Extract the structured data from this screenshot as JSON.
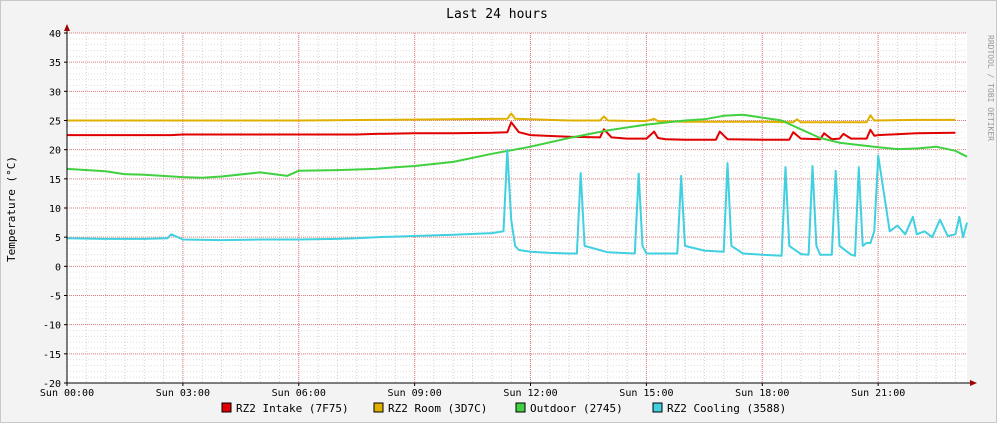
{
  "chart_data": {
    "type": "line",
    "title": "Last 24 hours",
    "ylabel": "Temperature (°C)",
    "xlabel": "",
    "watermark": "RRDTOOL / TOBI OETIKER",
    "ylim": [
      -20,
      40
    ],
    "yticks": [
      40,
      35,
      30,
      25,
      20,
      15,
      10,
      5,
      0,
      -5,
      -10,
      -15,
      -20
    ],
    "xlim": [
      0,
      23.3
    ],
    "xticks": [
      {
        "t": 0,
        "label": "Sun 00:00"
      },
      {
        "t": 3,
        "label": "Sun 03:00"
      },
      {
        "t": 6,
        "label": "Sun 06:00"
      },
      {
        "t": 9,
        "label": "Sun 09:00"
      },
      {
        "t": 12,
        "label": "Sun 12:00"
      },
      {
        "t": 15,
        "label": "Sun 15:00"
      },
      {
        "t": 18,
        "label": "Sun 18:00"
      },
      {
        "t": 21,
        "label": "Sun 21:00"
      }
    ],
    "grid": true,
    "legend_position": "bottom",
    "series": [
      {
        "name": "RZ2 Intake (7F75)",
        "color": "#e00000",
        "x": [
          0,
          1,
          2,
          2.7,
          3,
          4,
          5,
          6,
          7,
          7.3,
          7.5,
          8,
          9,
          10,
          11,
          11.4,
          11.5,
          11.7,
          12,
          13,
          13.8,
          13.9,
          14.1,
          14.5,
          15,
          15.2,
          15.3,
          15.5,
          16,
          16.8,
          16.9,
          17.1,
          18,
          18.7,
          18.8,
          19,
          19.5,
          19.6,
          19.8,
          20,
          20.1,
          20.3,
          20.7,
          20.8,
          20.9,
          21,
          22,
          23
        ],
        "y": [
          22.5,
          22.5,
          22.5,
          22.5,
          22.6,
          22.6,
          22.6,
          22.6,
          22.6,
          22.6,
          22.6,
          22.7,
          22.8,
          22.8,
          22.9,
          23,
          24.7,
          23,
          22.5,
          22.2,
          22.1,
          23.5,
          22.1,
          21.9,
          21.9,
          23.1,
          22,
          21.8,
          21.7,
          21.7,
          23.1,
          21.8,
          21.7,
          21.7,
          23,
          21.9,
          21.8,
          22.8,
          21.8,
          21.9,
          22.7,
          21.9,
          21.9,
          23.4,
          22.4,
          22.5,
          22.8,
          22.9
        ]
      },
      {
        "name": "RZ2 Room (3D7C)",
        "color": "#e0b000",
        "x": [
          0,
          2,
          4,
          6,
          8,
          10,
          11.4,
          11.5,
          11.6,
          12,
          13,
          13.8,
          13.9,
          14,
          15,
          15.2,
          15.3,
          16,
          18,
          18.8,
          18.9,
          19,
          20,
          20.7,
          20.8,
          20.9,
          22,
          23
        ],
        "y": [
          25,
          25,
          25,
          25,
          25.1,
          25.2,
          25.3,
          26.2,
          25.3,
          25.2,
          25,
          25,
          25.7,
          25,
          24.9,
          25.3,
          24.9,
          24.8,
          24.8,
          24.7,
          25.2,
          24.7,
          24.7,
          24.7,
          25.9,
          25,
          25.1,
          25.1
        ]
      },
      {
        "name": "Outdoor (2745)",
        "color": "#40d040",
        "x": [
          0,
          1,
          1.5,
          2,
          3,
          3.5,
          4,
          5,
          5.7,
          6,
          7,
          8,
          8.5,
          9,
          10,
          11,
          12,
          13,
          14,
          15,
          16,
          16.5,
          17,
          17.5,
          18,
          18.5,
          19,
          19.5,
          20,
          20.5,
          21,
          21.5,
          22,
          22.5,
          23,
          23.3
        ],
        "y": [
          16.7,
          16.3,
          15.8,
          15.7,
          15.3,
          15.2,
          15.4,
          16.1,
          15.5,
          16.4,
          16.5,
          16.7,
          17,
          17.2,
          17.9,
          19.3,
          20.5,
          22,
          23.3,
          24.3,
          25,
          25.2,
          25.8,
          26,
          25.5,
          25,
          23.5,
          22,
          21.2,
          20.8,
          20.4,
          20.1,
          20.2,
          20.5,
          19.8,
          18.8
        ]
      },
      {
        "name": "RZ2 Cooling (3588)",
        "color": "#40d0e0",
        "x": [
          0,
          1,
          2,
          2.6,
          2.7,
          3,
          4,
          5,
          6,
          7,
          7.5,
          8,
          8.5,
          9,
          10,
          11,
          11.3,
          11.4,
          11.5,
          11.6,
          11.7,
          12,
          12.5,
          13,
          13.2,
          13.3,
          13.4,
          14,
          14.7,
          14.8,
          14.9,
          15,
          15.5,
          15.8,
          15.9,
          16,
          16.5,
          17,
          17.1,
          17.2,
          17.5,
          18,
          18.5,
          18.6,
          18.7,
          19,
          19.2,
          19.3,
          19.4,
          19.5,
          19.8,
          19.9,
          20,
          20.3,
          20.4,
          20.5,
          20.6,
          20.7,
          20.8,
          20.9,
          21,
          21.3,
          21.5,
          21.7,
          21.9,
          22,
          22.2,
          22.4,
          22.6,
          22.8,
          23,
          23.1,
          23.2,
          23.3
        ],
        "y": [
          4.8,
          4.7,
          4.7,
          4.8,
          5.5,
          4.6,
          4.5,
          4.6,
          4.6,
          4.7,
          4.8,
          5,
          5.1,
          5.2,
          5.4,
          5.7,
          6,
          20,
          8,
          3.5,
          2.8,
          2.5,
          2.3,
          2.2,
          2.2,
          16,
          3.5,
          2.4,
          2.2,
          15.9,
          3.5,
          2.2,
          2.2,
          2.2,
          15.5,
          3.5,
          2.7,
          2.5,
          17.7,
          3.5,
          2.2,
          2,
          1.8,
          17,
          3.5,
          2.1,
          2,
          17.2,
          3.5,
          2,
          2,
          16.4,
          3.5,
          2,
          1.8,
          17,
          3.5,
          4,
          4,
          6,
          19,
          6,
          7,
          5.5,
          8.5,
          5.5,
          6,
          5,
          8,
          5.2,
          5.5,
          8.5,
          5,
          7.5
        ]
      }
    ]
  }
}
